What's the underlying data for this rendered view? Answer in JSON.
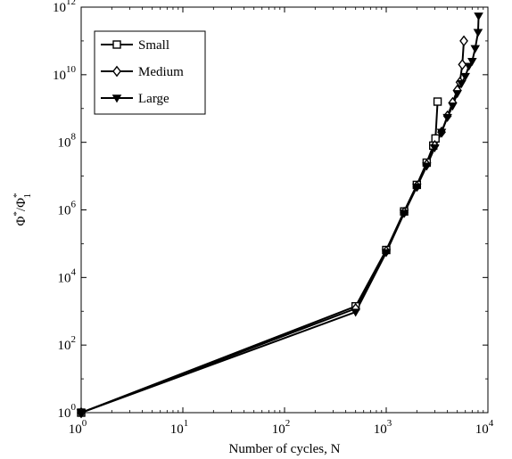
{
  "chart_data": {
    "type": "line",
    "xlabel": "Number of cycles, N",
    "ylabel": {
      "base": "Φ",
      "sup1": "*",
      "slash": "/Φ",
      "sup2": "*",
      "sub2": "1"
    },
    "x_scale": "log",
    "y_scale": "log",
    "xlim": [
      1,
      10000
    ],
    "ylim": [
      1,
      1000000000000
    ],
    "x_ticks": [
      {
        "value": 1,
        "base": "10",
        "exp": "0"
      },
      {
        "value": 10,
        "base": "10",
        "exp": "1"
      },
      {
        "value": 100,
        "base": "10",
        "exp": "2"
      },
      {
        "value": 1000,
        "base": "10",
        "exp": "3"
      },
      {
        "value": 10000,
        "base": "10",
        "exp": "4"
      }
    ],
    "y_ticks": [
      {
        "value": 1,
        "base": "10",
        "exp": "0"
      },
      {
        "value": 100,
        "base": "10",
        "exp": "2"
      },
      {
        "value": 10000,
        "base": "10",
        "exp": "4"
      },
      {
        "value": 1000000,
        "base": "10",
        "exp": "6"
      },
      {
        "value": 100000000,
        "base": "10",
        "exp": "8"
      },
      {
        "value": 10000000000,
        "base": "10",
        "exp": "10"
      },
      {
        "value": 1000000000000,
        "base": "10",
        "exp": "12"
      }
    ],
    "grid": false,
    "legend_position": "top-left",
    "series": [
      {
        "name": "Small",
        "marker": "square",
        "points": [
          [
            1,
            1
          ],
          [
            500,
            1400
          ],
          [
            1000,
            65000
          ],
          [
            1500,
            900000
          ],
          [
            2000,
            5500000
          ],
          [
            2500,
            25000000
          ],
          [
            2900,
            80000000
          ],
          [
            3050,
            130000000
          ],
          [
            3200,
            1600000000
          ]
        ]
      },
      {
        "name": "Medium",
        "marker": "diamond",
        "points": [
          [
            1,
            1
          ],
          [
            500,
            1200
          ],
          [
            1000,
            60000
          ],
          [
            1500,
            850000
          ],
          [
            2000,
            5000000
          ],
          [
            2500,
            22000000
          ],
          [
            3000,
            80000000
          ],
          [
            3500,
            200000000
          ],
          [
            4000,
            600000000
          ],
          [
            4500,
            1500000000
          ],
          [
            5000,
            3500000000
          ],
          [
            5300,
            6000000000
          ],
          [
            5600,
            20000000000
          ],
          [
            5800,
            100000000000
          ]
        ]
      },
      {
        "name": "Large",
        "marker": "triangle-down",
        "points": [
          [
            1,
            1
          ],
          [
            500,
            950
          ],
          [
            1000,
            55000
          ],
          [
            1500,
            800000
          ],
          [
            2000,
            4800000
          ],
          [
            2500,
            20000000
          ],
          [
            3000,
            70000000
          ],
          [
            3500,
            200000000
          ],
          [
            4000,
            550000000
          ],
          [
            4500,
            1200000000
          ],
          [
            5000,
            2800000000
          ],
          [
            5500,
            5500000000
          ],
          [
            6000,
            9000000000
          ],
          [
            6500,
            18000000000
          ],
          [
            7000,
            25000000000
          ],
          [
            7500,
            60000000000
          ],
          [
            8000,
            180000000000
          ],
          [
            8100,
            550000000000
          ]
        ]
      }
    ]
  }
}
